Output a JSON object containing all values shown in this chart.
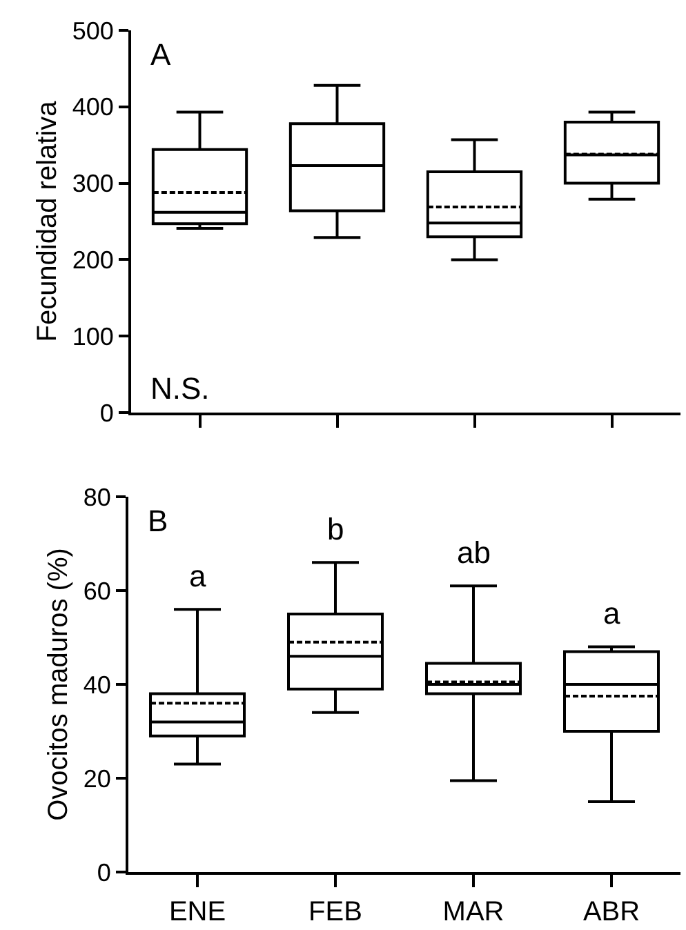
{
  "chart_data": [
    {
      "type": "box",
      "ylabel": "Fecundidad relativa",
      "categories": [
        null,
        null,
        null,
        null
      ],
      "ylim": [
        0,
        500
      ],
      "yticks": [
        0,
        100,
        200,
        300,
        400,
        500
      ],
      "grid": false,
      "series": [
        {
          "color": "#000000",
          "boxes": [
            {
              "low": 241,
              "q1": 247,
              "median": 262,
              "q3": 344,
              "high": 393,
              "mean": 288
            },
            {
              "low": 229,
              "q1": 264,
              "median": 323,
              "q3": 378,
              "high": 428,
              "mean": 323
            },
            {
              "low": 200,
              "q1": 230,
              "median": 248,
              "q3": 315,
              "high": 357,
              "mean": 269
            },
            {
              "low": 279,
              "q1": 300,
              "median": 337,
              "q3": 380,
              "high": 393,
              "mean": 338
            }
          ]
        }
      ],
      "annotations": [
        "A",
        "N.S."
      ]
    },
    {
      "type": "box",
      "ylabel": "Ovocitos maduros (%)",
      "categories": [
        "ENE",
        "FEB",
        "MAR",
        "ABR"
      ],
      "ylim": [
        0,
        80
      ],
      "yticks": [
        0,
        20,
        40,
        60,
        80
      ],
      "grid": false,
      "series": [
        {
          "color": "#000000",
          "boxes": [
            {
              "low": 23,
              "q1": 29,
              "median": 32,
              "q3": 38,
              "high": 56,
              "mean": 36
            },
            {
              "low": 34,
              "q1": 39,
              "median": 46,
              "q3": 55,
              "high": 66,
              "mean": 49
            },
            {
              "low": 19.5,
              "q1": 38,
              "median": 40,
              "q3": 44.5,
              "high": 61,
              "mean": 40.5
            },
            {
              "low": 15,
              "q1": 30,
              "median": 40,
              "q3": 47,
              "high": 48,
              "mean": 37.5
            }
          ]
        }
      ],
      "annotations": [
        "B",
        "a",
        "b",
        "ab",
        "a"
      ]
    }
  ]
}
